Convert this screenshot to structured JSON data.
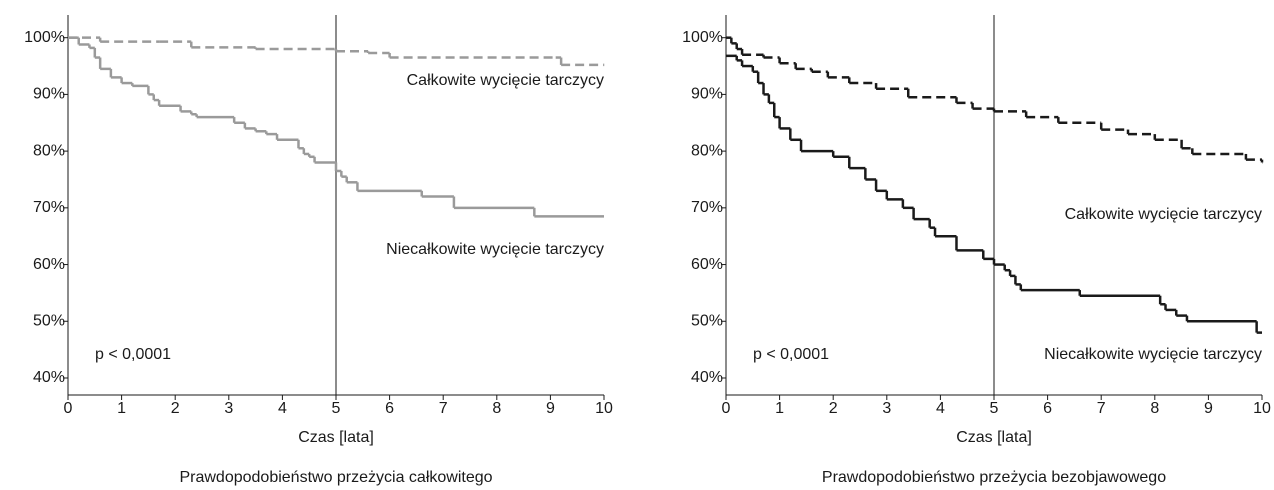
{
  "chart_data": [
    {
      "type": "step",
      "caption": "Prawdopodobieństwo przeżycia całkowitego",
      "x_label": "Czas [lata]",
      "annotation": "p < 0,0001",
      "xlim": [
        0,
        10
      ],
      "ylim": [
        37,
        104
      ],
      "xticks": [
        0,
        1,
        2,
        3,
        4,
        5,
        6,
        7,
        8,
        9,
        10
      ],
      "yticks": [
        {
          "value": 40,
          "label": "40%"
        },
        {
          "value": 50,
          "label": "50%"
        },
        {
          "value": 60,
          "label": "60%"
        },
        {
          "value": 70,
          "label": "70%"
        },
        {
          "value": 80,
          "label": "80%"
        },
        {
          "value": 90,
          "label": "90%"
        },
        {
          "value": 100,
          "label": "100%"
        }
      ],
      "vline": 5,
      "series": [
        {
          "name": "Całkowite wycięcie tarczycy",
          "color": "#9a9a9a",
          "dashed": true,
          "x": [
            0,
            0.6,
            1.7,
            2.3,
            3.5,
            5.0,
            5.6,
            6.0,
            9.1,
            9.2,
            10
          ],
          "values": [
            100,
            99.3,
            99.3,
            98.3,
            98.0,
            97.6,
            97.3,
            96.5,
            96.5,
            95.2,
            95.2
          ]
        },
        {
          "name": "Niecałkowite wycięcie tarczycy",
          "color": "#9a9a9a",
          "dashed": false,
          "x": [
            0,
            0.2,
            0.4,
            0.5,
            0.6,
            0.8,
            1.0,
            1.2,
            1.5,
            1.6,
            1.7,
            2.1,
            2.3,
            2.4,
            3.1,
            3.3,
            3.5,
            3.7,
            3.9,
            4.3,
            4.4,
            4.5,
            4.6,
            5.0,
            5.1,
            5.2,
            5.4,
            6.6,
            7.2,
            8.7,
            10
          ],
          "values": [
            100,
            98.8,
            98.2,
            96.5,
            94.5,
            93,
            92,
            91.5,
            90,
            89,
            88,
            87,
            86.5,
            86,
            85,
            84,
            83.5,
            83,
            82,
            80.5,
            79.5,
            79,
            78,
            76.5,
            75.5,
            74.5,
            73,
            72,
            70,
            68.5,
            68.5
          ]
        }
      ]
    },
    {
      "type": "step",
      "caption": "Prawdopodobieństwo przeżycia bezobjawowego",
      "x_label": "Czas [lata]",
      "annotation": "p < 0,0001",
      "xlim": [
        0,
        10
      ],
      "ylim": [
        37,
        104
      ],
      "xticks": [
        0,
        1,
        2,
        3,
        4,
        5,
        6,
        7,
        8,
        9,
        10
      ],
      "yticks": [
        {
          "value": 40,
          "label": "40%"
        },
        {
          "value": 50,
          "label": "50%"
        },
        {
          "value": 60,
          "label": "60%"
        },
        {
          "value": 70,
          "label": "70%"
        },
        {
          "value": 80,
          "label": "80%"
        },
        {
          "value": 90,
          "label": "90%"
        },
        {
          "value": 100,
          "label": "100%"
        }
      ],
      "vline": 5,
      "series": [
        {
          "name": "Całkowite wycięcie tarczycy",
          "color": "#1a1a1a",
          "dashed": true,
          "x": [
            0,
            0.1,
            0.2,
            0.3,
            0.7,
            1.0,
            1.3,
            1.6,
            1.9,
            2.3,
            2.8,
            3.4,
            4.3,
            4.6,
            5.0,
            5.6,
            6.2,
            7.0,
            7.5,
            8.0,
            8.5,
            8.7,
            9.7,
            10
          ],
          "values": [
            100,
            99,
            98,
            97,
            96.5,
            95.5,
            94.5,
            94,
            93,
            92,
            91,
            89.5,
            88.5,
            87.5,
            87,
            86,
            85,
            83.8,
            83,
            82,
            80.5,
            79.5,
            78.5,
            78
          ]
        },
        {
          "name": "Niecałkowite wycięcie tarczycy",
          "color": "#1a1a1a",
          "dashed": false,
          "x": [
            0,
            0.2,
            0.3,
            0.5,
            0.6,
            0.7,
            0.8,
            0.9,
            1.0,
            1.2,
            1.4,
            2.0,
            2.3,
            2.6,
            2.8,
            3.0,
            3.3,
            3.5,
            3.8,
            3.9,
            4.3,
            4.8,
            5.0,
            5.2,
            5.3,
            5.4,
            5.5,
            6.6,
            8.1,
            8.2,
            8.4,
            8.6,
            9.9,
            10
          ],
          "values": [
            96.8,
            96,
            95,
            94,
            92,
            90,
            88.5,
            86,
            84,
            82,
            80,
            79,
            77,
            75,
            73,
            71.5,
            70,
            68,
            66.5,
            65,
            62.5,
            61,
            60,
            59,
            58,
            56.5,
            55.5,
            54.5,
            53,
            52,
            51,
            50,
            48,
            48
          ]
        }
      ]
    }
  ]
}
